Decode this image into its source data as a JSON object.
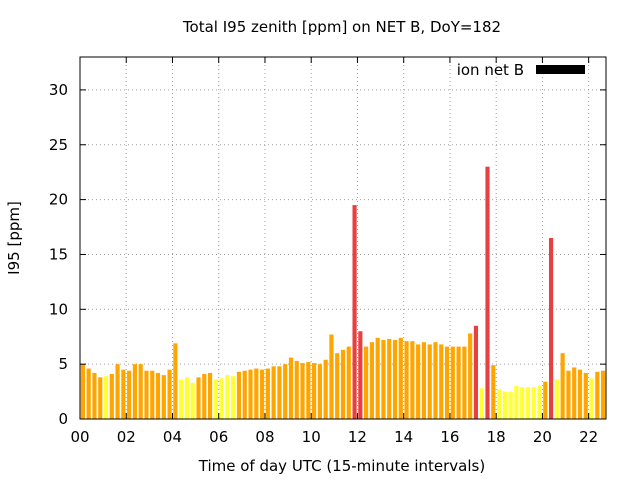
{
  "chart_data": {
    "type": "bar",
    "title": "Total I95 zenith [ppm] on NET B, DoY=182",
    "xlabel": "Time of day UTC (15-minute intervals)",
    "ylabel": "I95 [ppm]",
    "xlim": [
      0,
      22.75
    ],
    "ylim": [
      0,
      33
    ],
    "x_ticks": [
      0,
      2,
      4,
      6,
      8,
      10,
      12,
      14,
      16,
      18,
      20,
      22
    ],
    "x_tick_labels": [
      "00",
      "02",
      "04",
      "06",
      "08",
      "10",
      "12",
      "14",
      "16",
      "18",
      "20",
      "22"
    ],
    "y_ticks": [
      0,
      5,
      10,
      15,
      20,
      25,
      30
    ],
    "y_tick_labels": [
      "0",
      "5",
      "10",
      "15",
      "20",
      "25",
      "30"
    ],
    "grid": true,
    "legend": {
      "label": "ion net B",
      "color": "#000000",
      "placement": "top-right"
    },
    "colors": {
      "yellow": "#ffff33",
      "orange": "#ffa500",
      "red": "#e84040"
    },
    "bar_width_hours": 0.18,
    "bars": [
      {
        "x": 0.125,
        "y": 5.0,
        "c": "orange"
      },
      {
        "x": 0.375,
        "y": 4.6,
        "c": "orange"
      },
      {
        "x": 0.625,
        "y": 4.2,
        "c": "orange"
      },
      {
        "x": 0.875,
        "y": 3.8,
        "c": "orange"
      },
      {
        "x": 1.125,
        "y": 3.9,
        "c": "yellow"
      },
      {
        "x": 1.375,
        "y": 4.1,
        "c": "orange"
      },
      {
        "x": 1.625,
        "y": 5.0,
        "c": "orange"
      },
      {
        "x": 1.875,
        "y": 4.5,
        "c": "orange"
      },
      {
        "x": 2.125,
        "y": 4.4,
        "c": "orange"
      },
      {
        "x": 2.375,
        "y": 5.0,
        "c": "orange"
      },
      {
        "x": 2.625,
        "y": 5.0,
        "c": "orange"
      },
      {
        "x": 2.875,
        "y": 4.4,
        "c": "orange"
      },
      {
        "x": 3.125,
        "y": 4.4,
        "c": "orange"
      },
      {
        "x": 3.375,
        "y": 4.2,
        "c": "orange"
      },
      {
        "x": 3.625,
        "y": 4.0,
        "c": "orange"
      },
      {
        "x": 3.875,
        "y": 4.5,
        "c": "orange"
      },
      {
        "x": 4.125,
        "y": 6.9,
        "c": "orange"
      },
      {
        "x": 4.375,
        "y": 3.6,
        "c": "yellow"
      },
      {
        "x": 4.625,
        "y": 3.8,
        "c": "yellow"
      },
      {
        "x": 4.875,
        "y": 3.3,
        "c": "yellow"
      },
      {
        "x": 5.125,
        "y": 3.8,
        "c": "orange"
      },
      {
        "x": 5.375,
        "y": 4.1,
        "c": "orange"
      },
      {
        "x": 5.625,
        "y": 4.2,
        "c": "orange"
      },
      {
        "x": 5.875,
        "y": 3.6,
        "c": "yellow"
      },
      {
        "x": 6.125,
        "y": 3.7,
        "c": "yellow"
      },
      {
        "x": 6.375,
        "y": 4.0,
        "c": "yellow"
      },
      {
        "x": 6.625,
        "y": 3.9,
        "c": "yellow"
      },
      {
        "x": 6.875,
        "y": 4.3,
        "c": "orange"
      },
      {
        "x": 7.125,
        "y": 4.4,
        "c": "orange"
      },
      {
        "x": 7.375,
        "y": 4.5,
        "c": "orange"
      },
      {
        "x": 7.625,
        "y": 4.6,
        "c": "orange"
      },
      {
        "x": 7.875,
        "y": 4.5,
        "c": "orange"
      },
      {
        "x": 8.125,
        "y": 4.6,
        "c": "orange"
      },
      {
        "x": 8.375,
        "y": 4.8,
        "c": "orange"
      },
      {
        "x": 8.625,
        "y": 4.8,
        "c": "orange"
      },
      {
        "x": 8.875,
        "y": 5.0,
        "c": "orange"
      },
      {
        "x": 9.125,
        "y": 5.6,
        "c": "orange"
      },
      {
        "x": 9.375,
        "y": 5.3,
        "c": "orange"
      },
      {
        "x": 9.625,
        "y": 5.1,
        "c": "orange"
      },
      {
        "x": 9.875,
        "y": 5.2,
        "c": "orange"
      },
      {
        "x": 10.125,
        "y": 5.1,
        "c": "orange"
      },
      {
        "x": 10.375,
        "y": 5.0,
        "c": "orange"
      },
      {
        "x": 10.625,
        "y": 5.4,
        "c": "orange"
      },
      {
        "x": 10.875,
        "y": 7.7,
        "c": "orange"
      },
      {
        "x": 11.125,
        "y": 6.0,
        "c": "orange"
      },
      {
        "x": 11.375,
        "y": 6.3,
        "c": "orange"
      },
      {
        "x": 11.625,
        "y": 6.6,
        "c": "orange"
      },
      {
        "x": 11.875,
        "y": 19.5,
        "c": "red"
      },
      {
        "x": 12.125,
        "y": 8.0,
        "c": "red"
      },
      {
        "x": 12.375,
        "y": 6.6,
        "c": "orange"
      },
      {
        "x": 12.625,
        "y": 7.0,
        "c": "orange"
      },
      {
        "x": 12.875,
        "y": 7.4,
        "c": "orange"
      },
      {
        "x": 13.125,
        "y": 7.2,
        "c": "orange"
      },
      {
        "x": 13.375,
        "y": 7.3,
        "c": "orange"
      },
      {
        "x": 13.625,
        "y": 7.2,
        "c": "orange"
      },
      {
        "x": 13.875,
        "y": 7.4,
        "c": "orange"
      },
      {
        "x": 14.125,
        "y": 7.1,
        "c": "orange"
      },
      {
        "x": 14.375,
        "y": 7.1,
        "c": "orange"
      },
      {
        "x": 14.625,
        "y": 6.8,
        "c": "orange"
      },
      {
        "x": 14.875,
        "y": 7.0,
        "c": "orange"
      },
      {
        "x": 15.125,
        "y": 6.8,
        "c": "orange"
      },
      {
        "x": 15.375,
        "y": 7.0,
        "c": "orange"
      },
      {
        "x": 15.625,
        "y": 6.8,
        "c": "orange"
      },
      {
        "x": 15.875,
        "y": 6.6,
        "c": "orange"
      },
      {
        "x": 16.125,
        "y": 6.6,
        "c": "orange"
      },
      {
        "x": 16.375,
        "y": 6.6,
        "c": "orange"
      },
      {
        "x": 16.625,
        "y": 6.6,
        "c": "orange"
      },
      {
        "x": 16.875,
        "y": 7.8,
        "c": "orange"
      },
      {
        "x": 17.125,
        "y": 8.5,
        "c": "red"
      },
      {
        "x": 17.375,
        "y": 2.8,
        "c": "yellow"
      },
      {
        "x": 17.625,
        "y": 23.0,
        "c": "red"
      },
      {
        "x": 17.875,
        "y": 4.9,
        "c": "orange"
      },
      {
        "x": 18.125,
        "y": 2.7,
        "c": "yellow"
      },
      {
        "x": 18.375,
        "y": 2.5,
        "c": "yellow"
      },
      {
        "x": 18.625,
        "y": 2.5,
        "c": "yellow"
      },
      {
        "x": 18.875,
        "y": 3.0,
        "c": "yellow"
      },
      {
        "x": 19.125,
        "y": 2.9,
        "c": "yellow"
      },
      {
        "x": 19.375,
        "y": 2.9,
        "c": "yellow"
      },
      {
        "x": 19.625,
        "y": 2.9,
        "c": "yellow"
      },
      {
        "x": 19.875,
        "y": 3.0,
        "c": "yellow"
      },
      {
        "x": 20.125,
        "y": 3.4,
        "c": "orange"
      },
      {
        "x": 20.375,
        "y": 16.5,
        "c": "red"
      },
      {
        "x": 20.625,
        "y": 3.6,
        "c": "yellow"
      },
      {
        "x": 20.875,
        "y": 6.0,
        "c": "orange"
      },
      {
        "x": 21.125,
        "y": 4.4,
        "c": "orange"
      },
      {
        "x": 21.375,
        "y": 4.7,
        "c": "orange"
      },
      {
        "x": 21.625,
        "y": 4.5,
        "c": "orange"
      },
      {
        "x": 21.875,
        "y": 4.2,
        "c": "orange"
      },
      {
        "x": 22.125,
        "y": 3.7,
        "c": "yellow"
      },
      {
        "x": 22.375,
        "y": 4.3,
        "c": "orange"
      },
      {
        "x": 22.625,
        "y": 4.4,
        "c": "orange"
      }
    ]
  }
}
